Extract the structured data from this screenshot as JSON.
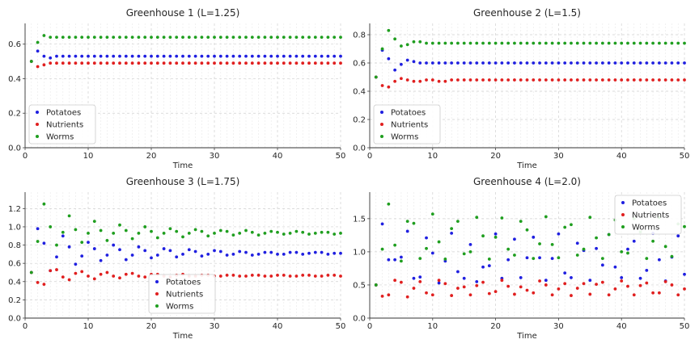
{
  "chart_data": [
    {
      "type": "scatter",
      "title": "Greenhouse 1 (L=1.25)",
      "xlabel": "Time",
      "ylabel": "",
      "xlim": [
        0,
        50
      ],
      "ylim": [
        0,
        0.72
      ],
      "xticks": [
        "0",
        "10",
        "20",
        "30",
        "40",
        "50"
      ],
      "yticks": [
        "0.0",
        "0.2",
        "0.4",
        "0.6"
      ],
      "legend_position": "lower-left",
      "grid": true,
      "x": [
        1,
        2,
        3,
        4,
        5,
        6,
        7,
        8,
        9,
        10,
        11,
        12,
        13,
        14,
        15,
        16,
        17,
        18,
        19,
        20,
        21,
        22,
        23,
        24,
        25,
        26,
        27,
        28,
        29,
        30,
        31,
        32,
        33,
        34,
        35,
        36,
        37,
        38,
        39,
        40,
        41,
        42,
        43,
        44,
        45,
        46,
        47,
        48,
        49,
        50
      ],
      "series": [
        {
          "name": "Potatoes",
          "color": "#1f1fe0",
          "values": [
            0.5,
            0.56,
            0.53,
            0.52,
            0.53,
            0.53,
            0.53,
            0.53,
            0.53,
            0.53,
            0.53,
            0.53,
            0.53,
            0.53,
            0.53,
            0.53,
            0.53,
            0.53,
            0.53,
            0.53,
            0.53,
            0.53,
            0.53,
            0.53,
            0.53,
            0.53,
            0.53,
            0.53,
            0.53,
            0.53,
            0.53,
            0.53,
            0.53,
            0.53,
            0.53,
            0.53,
            0.53,
            0.53,
            0.53,
            0.53,
            0.53,
            0.53,
            0.53,
            0.53,
            0.53,
            0.53,
            0.53,
            0.53,
            0.53,
            0.53
          ]
        },
        {
          "name": "Nutrients",
          "color": "#e01f1f",
          "values": [
            0.5,
            0.47,
            0.48,
            0.49,
            0.49,
            0.49,
            0.49,
            0.49,
            0.49,
            0.49,
            0.49,
            0.49,
            0.49,
            0.49,
            0.49,
            0.49,
            0.49,
            0.49,
            0.49,
            0.49,
            0.49,
            0.49,
            0.49,
            0.49,
            0.49,
            0.49,
            0.49,
            0.49,
            0.49,
            0.49,
            0.49,
            0.49,
            0.49,
            0.49,
            0.49,
            0.49,
            0.49,
            0.49,
            0.49,
            0.49,
            0.49,
            0.49,
            0.49,
            0.49,
            0.49,
            0.49,
            0.49,
            0.49,
            0.49,
            0.49
          ]
        },
        {
          "name": "Worms",
          "color": "#1f9e1f",
          "values": [
            0.5,
            0.61,
            0.65,
            0.64,
            0.64,
            0.64,
            0.64,
            0.64,
            0.64,
            0.64,
            0.64,
            0.64,
            0.64,
            0.64,
            0.64,
            0.64,
            0.64,
            0.64,
            0.64,
            0.64,
            0.64,
            0.64,
            0.64,
            0.64,
            0.64,
            0.64,
            0.64,
            0.64,
            0.64,
            0.64,
            0.64,
            0.64,
            0.64,
            0.64,
            0.64,
            0.64,
            0.64,
            0.64,
            0.64,
            0.64,
            0.64,
            0.64,
            0.64,
            0.64,
            0.64,
            0.64,
            0.64,
            0.64,
            0.64,
            0.64
          ]
        }
      ]
    },
    {
      "type": "scatter",
      "title": "Greenhouse 2 (L=1.5)",
      "xlabel": "Time",
      "ylabel": "",
      "xlim": [
        0,
        50
      ],
      "ylim": [
        0,
        0.88
      ],
      "xticks": [
        "0",
        "10",
        "20",
        "30",
        "40",
        "50"
      ],
      "yticks": [
        "0.0",
        "0.2",
        "0.4",
        "0.6",
        "0.8"
      ],
      "legend_position": "lower-left",
      "grid": true,
      "x": [
        1,
        2,
        3,
        4,
        5,
        6,
        7,
        8,
        9,
        10,
        11,
        12,
        13,
        14,
        15,
        16,
        17,
        18,
        19,
        20,
        21,
        22,
        23,
        24,
        25,
        26,
        27,
        28,
        29,
        30,
        31,
        32,
        33,
        34,
        35,
        36,
        37,
        38,
        39,
        40,
        41,
        42,
        43,
        44,
        45,
        46,
        47,
        48,
        49,
        50
      ],
      "series": [
        {
          "name": "Potatoes",
          "color": "#1f1fe0",
          "values": [
            0.5,
            0.69,
            0.63,
            0.55,
            0.59,
            0.62,
            0.61,
            0.6,
            0.6,
            0.6,
            0.6,
            0.6,
            0.6,
            0.6,
            0.6,
            0.6,
            0.6,
            0.6,
            0.6,
            0.6,
            0.6,
            0.6,
            0.6,
            0.6,
            0.6,
            0.6,
            0.6,
            0.6,
            0.6,
            0.6,
            0.6,
            0.6,
            0.6,
            0.6,
            0.6,
            0.6,
            0.6,
            0.6,
            0.6,
            0.6,
            0.6,
            0.6,
            0.6,
            0.6,
            0.6,
            0.6,
            0.6,
            0.6,
            0.6,
            0.6
          ]
        },
        {
          "name": "Nutrients",
          "color": "#e01f1f",
          "values": [
            0.5,
            0.44,
            0.43,
            0.47,
            0.49,
            0.48,
            0.47,
            0.47,
            0.48,
            0.48,
            0.47,
            0.47,
            0.48,
            0.48,
            0.48,
            0.48,
            0.48,
            0.48,
            0.48,
            0.48,
            0.48,
            0.48,
            0.48,
            0.48,
            0.48,
            0.48,
            0.48,
            0.48,
            0.48,
            0.48,
            0.48,
            0.48,
            0.48,
            0.48,
            0.48,
            0.48,
            0.48,
            0.48,
            0.48,
            0.48,
            0.48,
            0.48,
            0.48,
            0.48,
            0.48,
            0.48,
            0.48,
            0.48,
            0.48,
            0.48
          ]
        },
        {
          "name": "Worms",
          "color": "#1f9e1f",
          "values": [
            0.5,
            0.7,
            0.83,
            0.77,
            0.72,
            0.73,
            0.75,
            0.75,
            0.74,
            0.74,
            0.74,
            0.74,
            0.74,
            0.74,
            0.74,
            0.74,
            0.74,
            0.74,
            0.74,
            0.74,
            0.74,
            0.74,
            0.74,
            0.74,
            0.74,
            0.74,
            0.74,
            0.74,
            0.74,
            0.74,
            0.74,
            0.74,
            0.74,
            0.74,
            0.74,
            0.74,
            0.74,
            0.74,
            0.74,
            0.74,
            0.74,
            0.74,
            0.74,
            0.74,
            0.74,
            0.74,
            0.74,
            0.74,
            0.74,
            0.74
          ]
        }
      ]
    },
    {
      "type": "scatter",
      "title": "Greenhouse 3 (L=1.75)",
      "xlabel": "Time",
      "ylabel": "",
      "xlim": [
        0,
        50
      ],
      "ylim": [
        0,
        1.38
      ],
      "xticks": [
        "0",
        "10",
        "20",
        "30",
        "40",
        "50"
      ],
      "yticks": [
        "0.0",
        "0.2",
        "0.4",
        "0.6",
        "0.8",
        "1.0",
        "1.2"
      ],
      "legend_position": "lower-center",
      "grid": true,
      "x": [
        1,
        2,
        3,
        4,
        5,
        6,
        7,
        8,
        9,
        10,
        11,
        12,
        13,
        14,
        15,
        16,
        17,
        18,
        19,
        20,
        21,
        22,
        23,
        24,
        25,
        26,
        27,
        28,
        29,
        30,
        31,
        32,
        33,
        34,
        35,
        36,
        37,
        38,
        39,
        40,
        41,
        42,
        43,
        44,
        45,
        46,
        47,
        48,
        49,
        50
      ],
      "series": [
        {
          "name": "Potatoes",
          "color": "#1f1fe0",
          "values": [
            0.5,
            0.98,
            0.82,
            0.52,
            0.67,
            0.9,
            0.78,
            0.59,
            0.68,
            0.83,
            0.76,
            0.63,
            0.69,
            0.8,
            0.75,
            0.64,
            0.69,
            0.78,
            0.74,
            0.66,
            0.69,
            0.76,
            0.74,
            0.67,
            0.7,
            0.75,
            0.73,
            0.68,
            0.7,
            0.74,
            0.73,
            0.69,
            0.7,
            0.73,
            0.72,
            0.69,
            0.7,
            0.72,
            0.72,
            0.7,
            0.7,
            0.72,
            0.72,
            0.7,
            0.71,
            0.72,
            0.72,
            0.7,
            0.71,
            0.71
          ]
        },
        {
          "name": "Nutrients",
          "color": "#e01f1f",
          "values": [
            0.5,
            0.39,
            0.37,
            0.52,
            0.53,
            0.45,
            0.42,
            0.49,
            0.51,
            0.46,
            0.43,
            0.48,
            0.5,
            0.46,
            0.44,
            0.48,
            0.49,
            0.46,
            0.45,
            0.48,
            0.48,
            0.46,
            0.45,
            0.47,
            0.48,
            0.46,
            0.46,
            0.47,
            0.47,
            0.46,
            0.46,
            0.47,
            0.47,
            0.46,
            0.46,
            0.47,
            0.47,
            0.46,
            0.46,
            0.47,
            0.47,
            0.46,
            0.46,
            0.47,
            0.47,
            0.46,
            0.46,
            0.47,
            0.47,
            0.46
          ]
        },
        {
          "name": "Worms",
          "color": "#1f9e1f",
          "values": [
            0.5,
            0.84,
            1.25,
            1.0,
            0.8,
            0.94,
            1.12,
            0.97,
            0.83,
            0.93,
            1.06,
            0.96,
            0.85,
            0.93,
            1.02,
            0.96,
            0.87,
            0.93,
            1.0,
            0.95,
            0.88,
            0.93,
            0.98,
            0.95,
            0.89,
            0.93,
            0.97,
            0.95,
            0.9,
            0.93,
            0.96,
            0.95,
            0.91,
            0.93,
            0.96,
            0.94,
            0.91,
            0.93,
            0.95,
            0.94,
            0.92,
            0.93,
            0.95,
            0.94,
            0.92,
            0.93,
            0.94,
            0.94,
            0.92,
            0.93
          ]
        }
      ]
    },
    {
      "type": "scatter",
      "title": "Greenhouse 4 (L=2.0)",
      "xlabel": "Time",
      "ylabel": "",
      "xlim": [
        0,
        50
      ],
      "ylim": [
        0,
        1.9
      ],
      "xticks": [
        "0",
        "10",
        "20",
        "30",
        "40",
        "50"
      ],
      "yticks": [
        "0.0",
        "0.5",
        "1.0",
        "1.5"
      ],
      "legend_position": "upper-right",
      "grid": true,
      "x": [
        1,
        2,
        3,
        4,
        5,
        6,
        7,
        8,
        9,
        10,
        11,
        12,
        13,
        14,
        15,
        16,
        17,
        18,
        19,
        20,
        21,
        22,
        23,
        24,
        25,
        26,
        27,
        28,
        29,
        30,
        31,
        32,
        33,
        34,
        35,
        36,
        37,
        38,
        39,
        40,
        41,
        42,
        43,
        44,
        45,
        46,
        47,
        48,
        49,
        50
      ],
      "series": [
        {
          "name": "Potatoes",
          "color": "#1f1fe0",
          "values": [
            0.5,
            1.42,
            0.88,
            0.88,
            0.92,
            1.31,
            0.6,
            0.62,
            1.21,
            0.98,
            0.53,
            0.86,
            1.28,
            0.7,
            0.6,
            1.11,
            0.55,
            0.77,
            0.79,
            1.27,
            0.6,
            0.88,
            1.19,
            0.61,
            0.91,
            1.22,
            0.91,
            0.57,
            0.9,
            1.27,
            0.68,
            0.61,
            1.13,
            1.02,
            0.57,
            1.05,
            0.8,
            1.26,
            0.77,
            0.61,
            1.04,
            1.16,
            0.6,
            0.72,
            1.28,
            0.88,
            0.56,
            0.92,
            1.24,
            0.66
          ]
        },
        {
          "name": "Nutrients",
          "color": "#e01f1f",
          "values": [
            0.5,
            0.33,
            0.35,
            0.57,
            0.54,
            0.32,
            0.45,
            0.55,
            0.38,
            0.35,
            0.57,
            0.52,
            0.34,
            0.45,
            0.47,
            0.35,
            0.49,
            0.54,
            0.37,
            0.4,
            0.57,
            0.48,
            0.36,
            0.47,
            0.42,
            0.38,
            0.56,
            0.5,
            0.35,
            0.44,
            0.52,
            0.34,
            0.45,
            0.52,
            0.36,
            0.51,
            0.54,
            0.35,
            0.44,
            0.56,
            0.48,
            0.35,
            0.49,
            0.53,
            0.38,
            0.38,
            0.55,
            0.5,
            0.35,
            0.44
          ]
        },
        {
          "name": "Worms",
          "color": "#1f9e1f",
          "values": [
            0.5,
            1.04,
            1.72,
            1.1,
            0.86,
            1.46,
            1.43,
            0.9,
            1.05,
            1.57,
            1.15,
            0.89,
            1.35,
            1.46,
            0.97,
            1.0,
            1.52,
            1.24,
            0.89,
            1.22,
            1.51,
            1.04,
            0.95,
            1.46,
            1.33,
            0.9,
            1.12,
            1.53,
            1.11,
            0.91,
            1.37,
            1.41,
            0.95,
            1.04,
            1.52,
            1.21,
            0.9,
            1.26,
            1.48,
            1.0,
            0.98,
            1.5,
            1.3,
            0.9,
            1.16,
            1.52,
            1.08,
            0.93,
            1.42,
            1.38
          ]
        }
      ]
    }
  ]
}
